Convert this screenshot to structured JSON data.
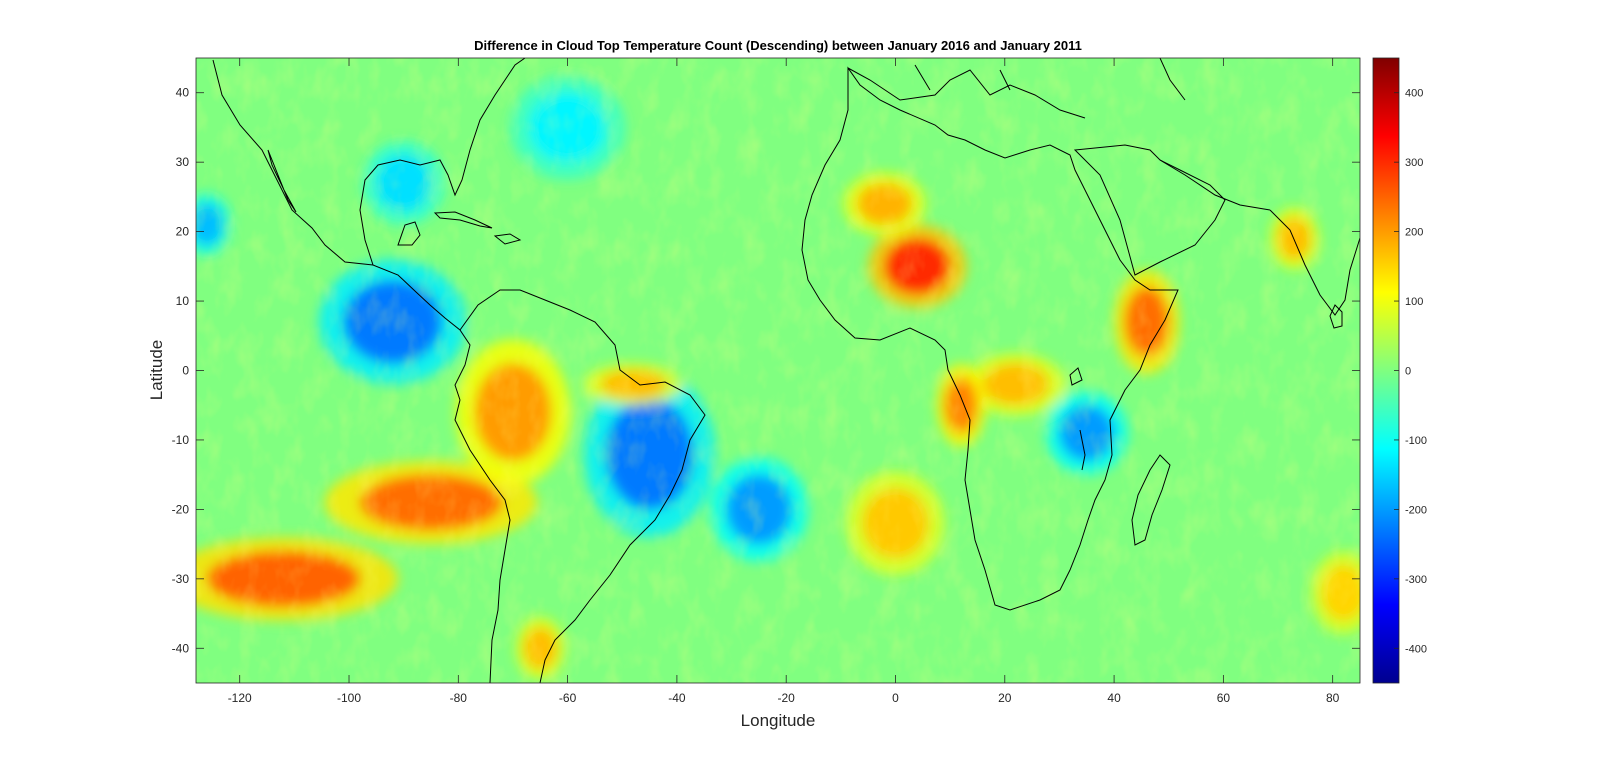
{
  "chart_data": {
    "type": "heatmap",
    "title": "Difference in Cloud Top Temperature Count (Descending) between January 2016 and January 2011",
    "xlabel": "Longitude",
    "ylabel": "Latitude",
    "xlim": [
      -128,
      85
    ],
    "ylim": [
      -45,
      45
    ],
    "x_ticks": [
      -120,
      -100,
      -80,
      -60,
      -40,
      -20,
      0,
      20,
      40,
      60,
      80
    ],
    "x_tick_labels": [
      "-120",
      "-100",
      "-80",
      "-60",
      "-40",
      "-20",
      "0",
      "20",
      "40",
      "60",
      "80"
    ],
    "y_ticks": [
      40,
      30,
      20,
      10,
      0,
      -10,
      -20,
      -30,
      -40
    ],
    "y_tick_labels": [
      "40",
      "30",
      "20",
      "10",
      "0",
      "-10",
      "-20",
      "-30",
      "-40"
    ],
    "colorbar": {
      "colormap": "jet",
      "range": [
        -450,
        450
      ],
      "ticks": [
        400,
        300,
        200,
        100,
        0,
        -100,
        -200,
        -300,
        -400
      ],
      "tick_labels": [
        "400",
        "300",
        "200",
        "100",
        "0",
        "-100",
        "-200",
        "-300",
        "-400"
      ]
    },
    "background_value": 0,
    "features": [
      {
        "name": "East Pacific positive band south",
        "lon": -112,
        "lat": -30,
        "rlon": 14,
        "rlat": 4,
        "value": 250
      },
      {
        "name": "East Pacific positive band north",
        "lon": -85,
        "lat": -19,
        "rlon": 13,
        "rlat": 4,
        "value": 240
      },
      {
        "name": "Central America negative",
        "lon": -92,
        "lat": 7,
        "rlon": 9,
        "rlat": 6,
        "value": -230
      },
      {
        "name": "West Amazon positive",
        "lon": -70,
        "lat": -6,
        "rlon": 7,
        "rlat": 7,
        "value": 200
      },
      {
        "name": "Northeast Brazil negative",
        "lon": -45,
        "lat": -12,
        "rlon": 8,
        "rlat": 8,
        "value": -230
      },
      {
        "name": "Guyana coast positive",
        "lon": -48,
        "lat": -2,
        "rlon": 6,
        "rlat": 2,
        "value": 170
      },
      {
        "name": "West Africa Sahel positive",
        "lon": 4,
        "lat": 15,
        "rlon": 6,
        "rlat": 4,
        "value": 300
      },
      {
        "name": "Sahara positive",
        "lon": -2,
        "lat": 24,
        "rlon": 5,
        "rlat": 3,
        "value": 180
      },
      {
        "name": "Horn of Africa positive",
        "lon": 46,
        "lat": 7,
        "rlon": 4,
        "rlat": 5,
        "value": 240
      },
      {
        "name": "Central Africa positive",
        "lon": 22,
        "lat": -2,
        "rlon": 6,
        "rlat": 3,
        "value": 170
      },
      {
        "name": "Congo coast positive",
        "lon": 12,
        "lat": -5,
        "rlon": 3,
        "rlat": 4,
        "value": 220
      },
      {
        "name": "East Africa lakes negative",
        "lon": 35,
        "lat": -9,
        "rlon": 5,
        "rlat": 4,
        "value": -200
      },
      {
        "name": "South Atlantic negative",
        "lon": -25,
        "lat": -20,
        "rlon": 6,
        "rlat": 5,
        "value": -200
      },
      {
        "name": "South Atlantic positive",
        "lon": 0,
        "lat": -22,
        "rlon": 6,
        "rlat": 5,
        "value": 160
      },
      {
        "name": "Indian Ocean west positive",
        "lon": 82,
        "lat": -32,
        "rlon": 4,
        "rlat": 4,
        "value": 150
      },
      {
        "name": "India west coast positive",
        "lon": 73,
        "lat": 19,
        "rlon": 3,
        "rlat": 3,
        "value": 170
      },
      {
        "name": "Pacific west negative",
        "lon": -126,
        "lat": 21,
        "rlon": 3,
        "rlat": 3,
        "value": -170
      },
      {
        "name": "North Atlantic negative",
        "lon": -60,
        "lat": 35,
        "rlon": 7,
        "rlat": 5,
        "value": -120
      },
      {
        "name": "Gulf of Mexico negative",
        "lon": -90,
        "lat": 27,
        "rlon": 5,
        "rlat": 4,
        "value": -140
      },
      {
        "name": "Chile coast positive",
        "lon": -65,
        "lat": -40,
        "rlon": 3,
        "rlat": 3,
        "value": 170
      }
    ]
  }
}
